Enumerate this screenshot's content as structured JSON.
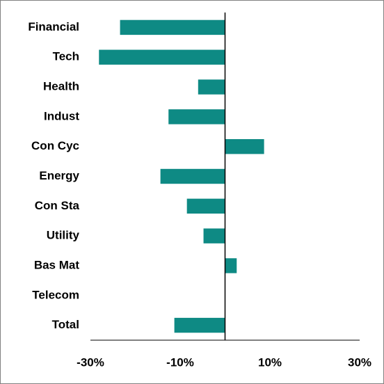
{
  "chart_data": {
    "type": "barh",
    "categories": [
      "Financial",
      "Tech",
      "Health",
      "Indust",
      "Con Cyc",
      "Energy",
      "Con Sta",
      "Utility",
      "Bas Mat",
      "Telecom",
      "Total"
    ],
    "values": [
      -23.4,
      -28.1,
      -6.0,
      -12.6,
      8.7,
      -14.4,
      -8.5,
      -4.8,
      2.6,
      0,
      -11.3
    ],
    "color": "#0e8a84",
    "xlim": [
      -30,
      30
    ],
    "xticks": [
      {
        "value": -30,
        "label": "-30%"
      },
      {
        "value": -10,
        "label": "-10%"
      },
      {
        "value": 10,
        "label": "10%"
      },
      {
        "value": 30,
        "label": "30%"
      }
    ],
    "grid": false
  }
}
